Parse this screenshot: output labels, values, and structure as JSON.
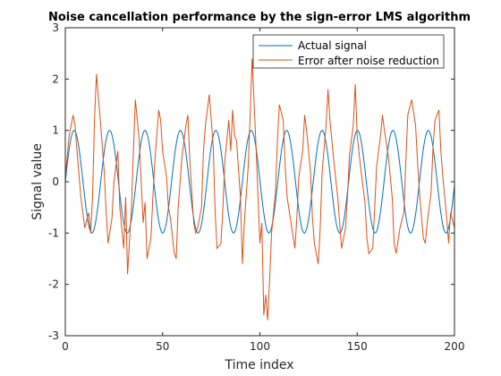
{
  "chart_data": {
    "type": "line",
    "title": "Noise cancellation performance by the sign-error LMS algorithm",
    "xlabel": "Time index",
    "ylabel": "Signal value",
    "xlim": [
      0,
      200
    ],
    "ylim": [
      -3,
      3
    ],
    "xticks": [
      0,
      50,
      100,
      150,
      200
    ],
    "yticks": [
      -3,
      -2,
      -1,
      0,
      1,
      2,
      3
    ],
    "grid": false,
    "legend_position": "top-right",
    "series": [
      {
        "name": "Actual signal",
        "color": "#0072BD",
        "sampled_from": "sin(2*pi*n/18.2)",
        "x": [
          0,
          5,
          9,
          14,
          18,
          23,
          27,
          32,
          36,
          41,
          46,
          50,
          55,
          59,
          64,
          68,
          73,
          77,
          82,
          86,
          91,
          96,
          100,
          105,
          109,
          114,
          118,
          123,
          127,
          132,
          136,
          141,
          146,
          150,
          155,
          159,
          164,
          168,
          173,
          177,
          182,
          186,
          191,
          196,
          200
        ],
        "y": [
          0,
          1,
          0,
          -1,
          0,
          1,
          0,
          -1,
          0,
          1,
          0,
          -1,
          0,
          1,
          0,
          -1,
          0,
          1,
          0,
          -1,
          0,
          1,
          0,
          -1,
          0,
          1,
          0,
          -1,
          0,
          1,
          0,
          -1,
          0,
          1,
          0,
          -1,
          0,
          1,
          0,
          -1,
          0,
          1,
          0,
          -1,
          0
        ]
      },
      {
        "name": "Error after noise reduction",
        "color": "#D95319",
        "x": [
          0,
          2,
          4,
          5,
          6,
          8,
          10,
          12,
          13,
          14,
          15,
          16,
          18,
          20,
          21,
          22,
          24,
          25,
          27,
          28,
          30,
          31,
          32,
          34,
          35,
          36,
          38,
          40,
          41,
          42,
          44,
          45,
          46,
          48,
          49,
          50,
          52,
          53,
          54,
          56,
          57,
          58,
          60,
          62,
          63,
          64,
          66,
          67,
          68,
          70,
          71,
          72,
          74,
          76,
          77,
          78,
          80,
          81,
          82,
          84,
          85,
          86,
          87,
          88,
          90,
          91,
          92,
          94,
          95,
          96,
          98,
          100,
          101,
          102,
          103,
          104,
          105,
          106,
          108,
          109,
          110,
          112,
          113,
          114,
          116,
          118,
          119,
          120,
          122,
          123,
          124,
          126,
          127,
          128,
          130,
          131,
          132,
          134,
          135,
          136,
          138,
          140,
          141,
          142,
          144,
          145,
          146,
          148,
          149,
          150,
          152,
          154,
          155,
          156,
          158,
          159,
          160,
          162,
          163,
          164,
          166,
          168,
          169,
          170,
          172,
          174,
          175,
          176,
          178,
          180,
          181,
          182,
          184,
          185,
          186,
          188,
          189,
          190,
          192,
          193,
          194,
          196,
          197,
          198,
          200
        ],
        "y": [
          0.1,
          0.9,
          1.3,
          1.1,
          0.6,
          -0.3,
          -0.9,
          -0.6,
          -1.0,
          -0.3,
          1.2,
          2.1,
          1.2,
          0.2,
          -0.6,
          -1.2,
          -0.7,
          0.0,
          0.6,
          -0.5,
          -1.3,
          -0.3,
          -1.8,
          -0.5,
          0.6,
          1.6,
          0.8,
          -0.8,
          -0.4,
          -1.5,
          -1.1,
          -0.3,
          0.4,
          1.4,
          1.2,
          0.6,
          0.1,
          -0.5,
          -0.7,
          -1.4,
          -1.5,
          -0.5,
          0.5,
          1.1,
          1.3,
          0.4,
          -0.8,
          -1.0,
          -0.9,
          -0.5,
          0.6,
          1.1,
          1.7,
          0.7,
          -0.6,
          -1.3,
          -1.2,
          -0.5,
          0.4,
          1.2,
          0.6,
          1.4,
          0.9,
          0.8,
          -0.3,
          -1.6,
          -0.8,
          0.3,
          1.3,
          2.4,
          0.7,
          -1.2,
          -0.8,
          -2.6,
          -2.2,
          -2.7,
          -1.9,
          -1.0,
          -0.2,
          0.8,
          1.5,
          1.2,
          0.3,
          -0.3,
          -0.8,
          -1.3,
          -0.7,
          0.1,
          0.6,
          1.3,
          1.0,
          0.2,
          -0.7,
          -1.2,
          -1.6,
          -0.9,
          0.2,
          1.1,
          1.8,
          1.2,
          0.4,
          -0.3,
          -0.8,
          -1.3,
          -0.9,
          -0.3,
          0.5,
          1.1,
          1.9,
          0.9,
          0.2,
          -0.4,
          -1.1,
          -1.4,
          -1.3,
          -0.5,
          0.3,
          0.9,
          1.3,
          1.0,
          0.5,
          -0.3,
          -1.2,
          -1.4,
          -0.9,
          -0.6,
          0.4,
          1.3,
          1.6,
          1.1,
          0.4,
          -0.2,
          -1.1,
          -1.2,
          -0.8,
          -0.2,
          0.7,
          1.2,
          1.4,
          0.6,
          0.1,
          -0.7,
          -1.2,
          -0.6,
          -0.9
        ]
      }
    ]
  }
}
